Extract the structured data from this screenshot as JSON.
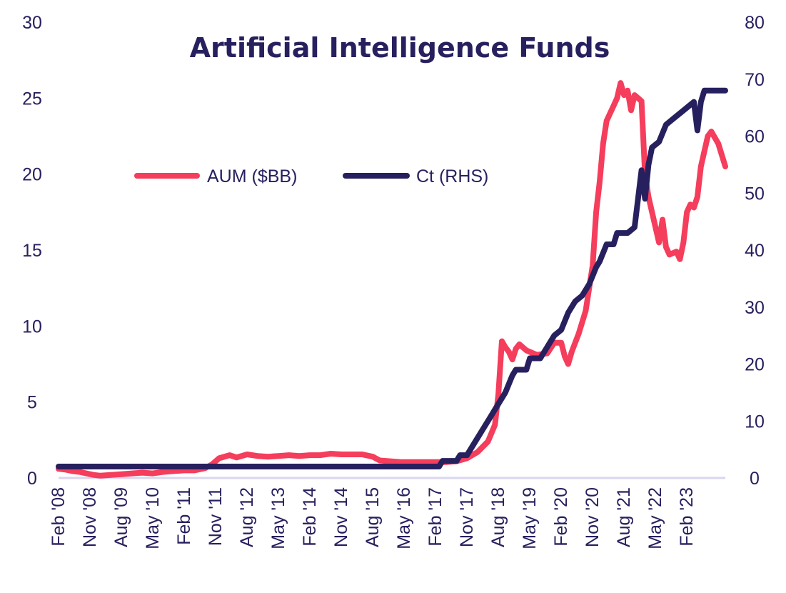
{
  "chart_data": {
    "type": "line",
    "title": "Artificial Intelligence Funds",
    "colors": {
      "aum": "#f53d5c",
      "ct": "#27205e",
      "baseline": "#d9d6ef",
      "text": "#27205e"
    },
    "x_tick_labels": [
      "Feb '08",
      "Nov '08",
      "Aug '09",
      "May '10",
      "Feb '11",
      "Nov '11",
      "Aug '12",
      "May '13",
      "Feb '14",
      "Nov '14",
      "Aug '15",
      "May '16",
      "Feb '17",
      "Nov '17",
      "Aug '18",
      "May '19",
      "Feb '20",
      "Nov '20",
      "Aug '21",
      "May '22",
      "Feb '23"
    ],
    "y_left": {
      "ticks": [
        "0",
        "5",
        "10",
        "15",
        "20",
        "25",
        "30"
      ],
      "range": [
        0,
        30
      ]
    },
    "y_right": {
      "ticks": [
        "0",
        "10",
        "20",
        "30",
        "40",
        "50",
        "60",
        "70",
        "80"
      ],
      "range": [
        0,
        80
      ]
    },
    "legend": {
      "placement": "top-left",
      "items": [
        "AUM ($BB)",
        "Ct (RHS)"
      ]
    },
    "grid": false,
    "series": [
      {
        "name": "AUM ($BB)",
        "axis": "left",
        "points": [
          [
            "2008-02",
            0.6
          ],
          [
            "2008-04",
            0.55
          ],
          [
            "2008-06",
            0.45
          ],
          [
            "2008-08",
            0.4
          ],
          [
            "2008-10",
            0.3
          ],
          [
            "2008-12",
            0.2
          ],
          [
            "2009-02",
            0.15
          ],
          [
            "2009-05",
            0.2
          ],
          [
            "2009-08",
            0.25
          ],
          [
            "2009-11",
            0.3
          ],
          [
            "2010-02",
            0.35
          ],
          [
            "2010-05",
            0.3
          ],
          [
            "2010-08",
            0.4
          ],
          [
            "2010-11",
            0.45
          ],
          [
            "2011-02",
            0.5
          ],
          [
            "2011-05",
            0.5
          ],
          [
            "2011-08",
            0.65
          ],
          [
            "2011-10",
            0.9
          ],
          [
            "2011-12",
            1.3
          ],
          [
            "2012-03",
            1.5
          ],
          [
            "2012-05",
            1.35
          ],
          [
            "2012-08",
            1.55
          ],
          [
            "2012-11",
            1.45
          ],
          [
            "2013-02",
            1.4
          ],
          [
            "2013-05",
            1.45
          ],
          [
            "2013-08",
            1.5
          ],
          [
            "2013-11",
            1.45
          ],
          [
            "2014-02",
            1.5
          ],
          [
            "2014-05",
            1.5
          ],
          [
            "2014-08",
            1.6
          ],
          [
            "2014-11",
            1.55
          ],
          [
            "2015-02",
            1.55
          ],
          [
            "2015-05",
            1.55
          ],
          [
            "2015-08",
            1.4
          ],
          [
            "2015-10",
            1.15
          ],
          [
            "2016-01",
            1.1
          ],
          [
            "2016-04",
            1.05
          ],
          [
            "2016-07",
            1.05
          ],
          [
            "2016-10",
            1.05
          ],
          [
            "2017-02",
            1.05
          ],
          [
            "2017-05",
            1.05
          ],
          [
            "2017-08",
            1.1
          ],
          [
            "2017-11",
            1.3
          ],
          [
            "2018-02",
            1.7
          ],
          [
            "2018-05",
            2.4
          ],
          [
            "2018-07",
            3.5
          ],
          [
            "2018-08",
            5.5
          ],
          [
            "2018-09",
            9.0
          ],
          [
            "2018-10",
            8.6
          ],
          [
            "2018-11",
            8.3
          ],
          [
            "2018-12",
            7.8
          ],
          [
            "2019-01",
            8.5
          ],
          [
            "2019-02",
            8.8
          ],
          [
            "2019-04",
            8.4
          ],
          [
            "2019-07",
            8.1
          ],
          [
            "2019-10",
            8.2
          ],
          [
            "2019-12",
            8.9
          ],
          [
            "2020-02",
            8.9
          ],
          [
            "2020-03",
            8.0
          ],
          [
            "2020-04",
            7.5
          ],
          [
            "2020-05",
            8.3
          ],
          [
            "2020-07",
            9.5
          ],
          [
            "2020-09",
            11.0
          ],
          [
            "2020-11",
            14.0
          ],
          [
            "2020-12",
            17.5
          ],
          [
            "2021-01",
            19.5
          ],
          [
            "2021-02",
            22.0
          ],
          [
            "2021-03",
            23.5
          ],
          [
            "2021-05",
            24.5
          ],
          [
            "2021-06",
            25.0
          ],
          [
            "2021-07",
            26.0
          ],
          [
            "2021-08",
            25.2
          ],
          [
            "2021-09",
            25.5
          ],
          [
            "2021-10",
            24.2
          ],
          [
            "2021-11",
            25.2
          ],
          [
            "2021-12",
            25.0
          ],
          [
            "2022-01",
            24.8
          ],
          [
            "2022-02",
            20.0
          ],
          [
            "2022-03",
            18.5
          ],
          [
            "2022-05",
            16.5
          ],
          [
            "2022-06",
            15.5
          ],
          [
            "2022-07",
            17.0
          ],
          [
            "2022-08",
            15.2
          ],
          [
            "2022-09",
            14.7
          ],
          [
            "2022-11",
            14.9
          ],
          [
            "2022-12",
            14.4
          ],
          [
            "2023-01",
            15.5
          ],
          [
            "2023-02",
            17.5
          ],
          [
            "2023-03",
            18.0
          ],
          [
            "2023-04",
            17.8
          ],
          [
            "2023-05",
            18.5
          ],
          [
            "2023-06",
            20.5
          ],
          [
            "2023-08",
            22.5
          ],
          [
            "2023-09",
            22.8
          ],
          [
            "2023-11",
            22.0
          ],
          [
            "2024-01",
            20.5
          ]
        ]
      },
      {
        "name": "Ct (RHS)",
        "axis": "right",
        "points": [
          [
            "2008-02",
            2
          ],
          [
            "2017-03",
            2
          ],
          [
            "2017-04",
            3
          ],
          [
            "2017-08",
            3
          ],
          [
            "2017-09",
            4
          ],
          [
            "2017-11",
            4
          ],
          [
            "2018-01",
            6
          ],
          [
            "2018-03",
            8
          ],
          [
            "2018-05",
            10
          ],
          [
            "2018-06",
            11
          ],
          [
            "2018-08",
            13
          ],
          [
            "2018-10",
            15
          ],
          [
            "2018-12",
            18
          ],
          [
            "2019-01",
            19
          ],
          [
            "2019-04",
            19
          ],
          [
            "2019-05",
            21
          ],
          [
            "2019-08",
            21
          ],
          [
            "2019-10",
            23
          ],
          [
            "2019-12",
            25
          ],
          [
            "2020-02",
            26
          ],
          [
            "2020-04",
            29
          ],
          [
            "2020-06",
            31
          ],
          [
            "2020-08",
            32
          ],
          [
            "2020-10",
            34
          ],
          [
            "2020-12",
            37
          ],
          [
            "2021-01",
            38
          ],
          [
            "2021-03",
            41
          ],
          [
            "2021-05",
            41
          ],
          [
            "2021-06",
            43
          ],
          [
            "2021-09",
            43
          ],
          [
            "2021-11",
            44
          ],
          [
            "2022-01",
            54
          ],
          [
            "2022-02",
            49
          ],
          [
            "2022-03",
            55
          ],
          [
            "2022-04",
            58
          ],
          [
            "2022-06",
            59
          ],
          [
            "2022-08",
            62
          ],
          [
            "2022-10",
            63
          ],
          [
            "2022-12",
            64
          ],
          [
            "2023-02",
            65
          ],
          [
            "2023-04",
            66
          ],
          [
            "2023-05",
            61
          ],
          [
            "2023-06",
            66
          ],
          [
            "2023-07",
            68
          ],
          [
            "2024-01",
            68
          ]
        ]
      }
    ]
  }
}
